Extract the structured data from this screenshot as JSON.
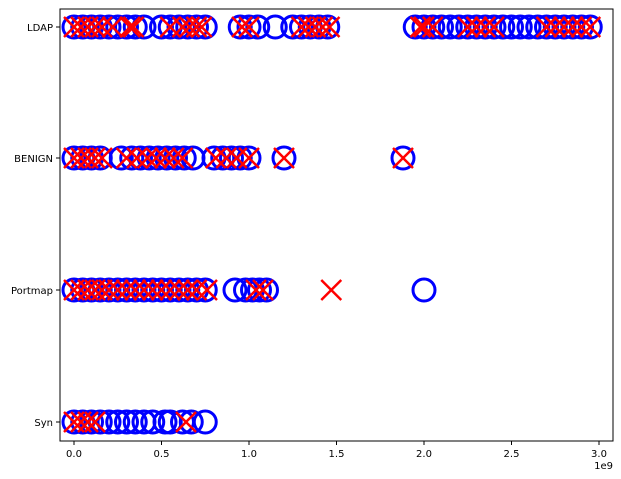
{
  "chart_data": {
    "type": "scatter",
    "title": "",
    "xlabel": "",
    "ylabel": "",
    "x_offset_label": "1e9",
    "categories": [
      "Syn",
      "Portmap",
      "BENIGN",
      "LDAP"
    ],
    "x_ticks": [
      0.0,
      0.5,
      1.0,
      1.5,
      2.0,
      2.5,
      3.0
    ],
    "x_tick_labels": [
      "0.0",
      "0.5",
      "1.0",
      "1.5",
      "2.0",
      "2.5",
      "3.0"
    ],
    "xlim": [
      -0.08,
      3.08
    ],
    "grid": false,
    "legend": "none",
    "series": [
      {
        "marker": "circle",
        "color": "#0000ff",
        "points": [
          {
            "y": "LDAP",
            "x": [
              0.0,
              0.05,
              0.1,
              0.15,
              0.2,
              0.25,
              0.3,
              0.35,
              0.4,
              0.5,
              0.55,
              0.6,
              0.65,
              0.7,
              0.75,
              0.95,
              1.0,
              1.05,
              1.15,
              1.25,
              1.3,
              1.35,
              1.4,
              1.45,
              1.95,
              2.0,
              2.05,
              2.1,
              2.15,
              2.2,
              2.25,
              2.3,
              2.35,
              2.4,
              2.45,
              2.5,
              2.55,
              2.6,
              2.65,
              2.7,
              2.75,
              2.8,
              2.85,
              2.9,
              2.95
            ]
          },
          {
            "y": "BENIGN",
            "x": [
              0.0,
              0.05,
              0.1,
              0.15,
              0.27,
              0.33,
              0.38,
              0.43,
              0.48,
              0.53,
              0.58,
              0.63,
              0.68,
              0.8,
              0.85,
              0.9,
              0.95,
              1.0,
              1.2,
              1.88
            ]
          },
          {
            "y": "Portmap",
            "x": [
              0.0,
              0.05,
              0.1,
              0.15,
              0.2,
              0.25,
              0.3,
              0.35,
              0.4,
              0.45,
              0.5,
              0.55,
              0.6,
              0.65,
              0.7,
              0.75,
              0.92,
              0.98,
              1.02,
              1.06,
              1.1,
              2.0
            ]
          },
          {
            "y": "Syn",
            "x": [
              0.0,
              0.05,
              0.1,
              0.15,
              0.2,
              0.25,
              0.3,
              0.35,
              0.4,
              0.45,
              0.52,
              0.55,
              0.62,
              0.67,
              0.75
            ]
          }
        ]
      },
      {
        "marker": "x",
        "color": "#ff0000",
        "points": [
          {
            "y": "LDAP",
            "x": [
              0.0,
              0.04,
              0.08,
              0.12,
              0.16,
              0.22,
              0.32,
              0.34,
              0.55,
              0.62,
              0.66,
              0.7,
              0.73,
              0.96,
              1.0,
              1.3,
              1.34,
              1.38,
              1.42,
              1.46,
              1.98,
              2.0,
              2.05,
              2.25,
              2.3,
              2.35,
              2.4,
              2.7,
              2.75,
              2.8,
              2.85,
              2.9,
              2.95
            ]
          },
          {
            "y": "BENIGN",
            "x": [
              0.0,
              0.04,
              0.08,
              0.12,
              0.16,
              0.3,
              0.36,
              0.42,
              0.47,
              0.52,
              0.57,
              0.62,
              0.81,
              0.87,
              0.93,
              1.0,
              1.2,
              1.88
            ]
          },
          {
            "y": "Portmap",
            "x": [
              0.0,
              0.04,
              0.08,
              0.12,
              0.16,
              0.2,
              0.25,
              0.3,
              0.35,
              0.4,
              0.45,
              0.5,
              0.55,
              0.6,
              0.65,
              0.7,
              0.76,
              1.04,
              1.08,
              1.47
            ]
          },
          {
            "y": "Syn",
            "x": [
              0.0,
              0.04,
              0.08,
              0.12,
              0.64
            ]
          }
        ]
      }
    ]
  }
}
